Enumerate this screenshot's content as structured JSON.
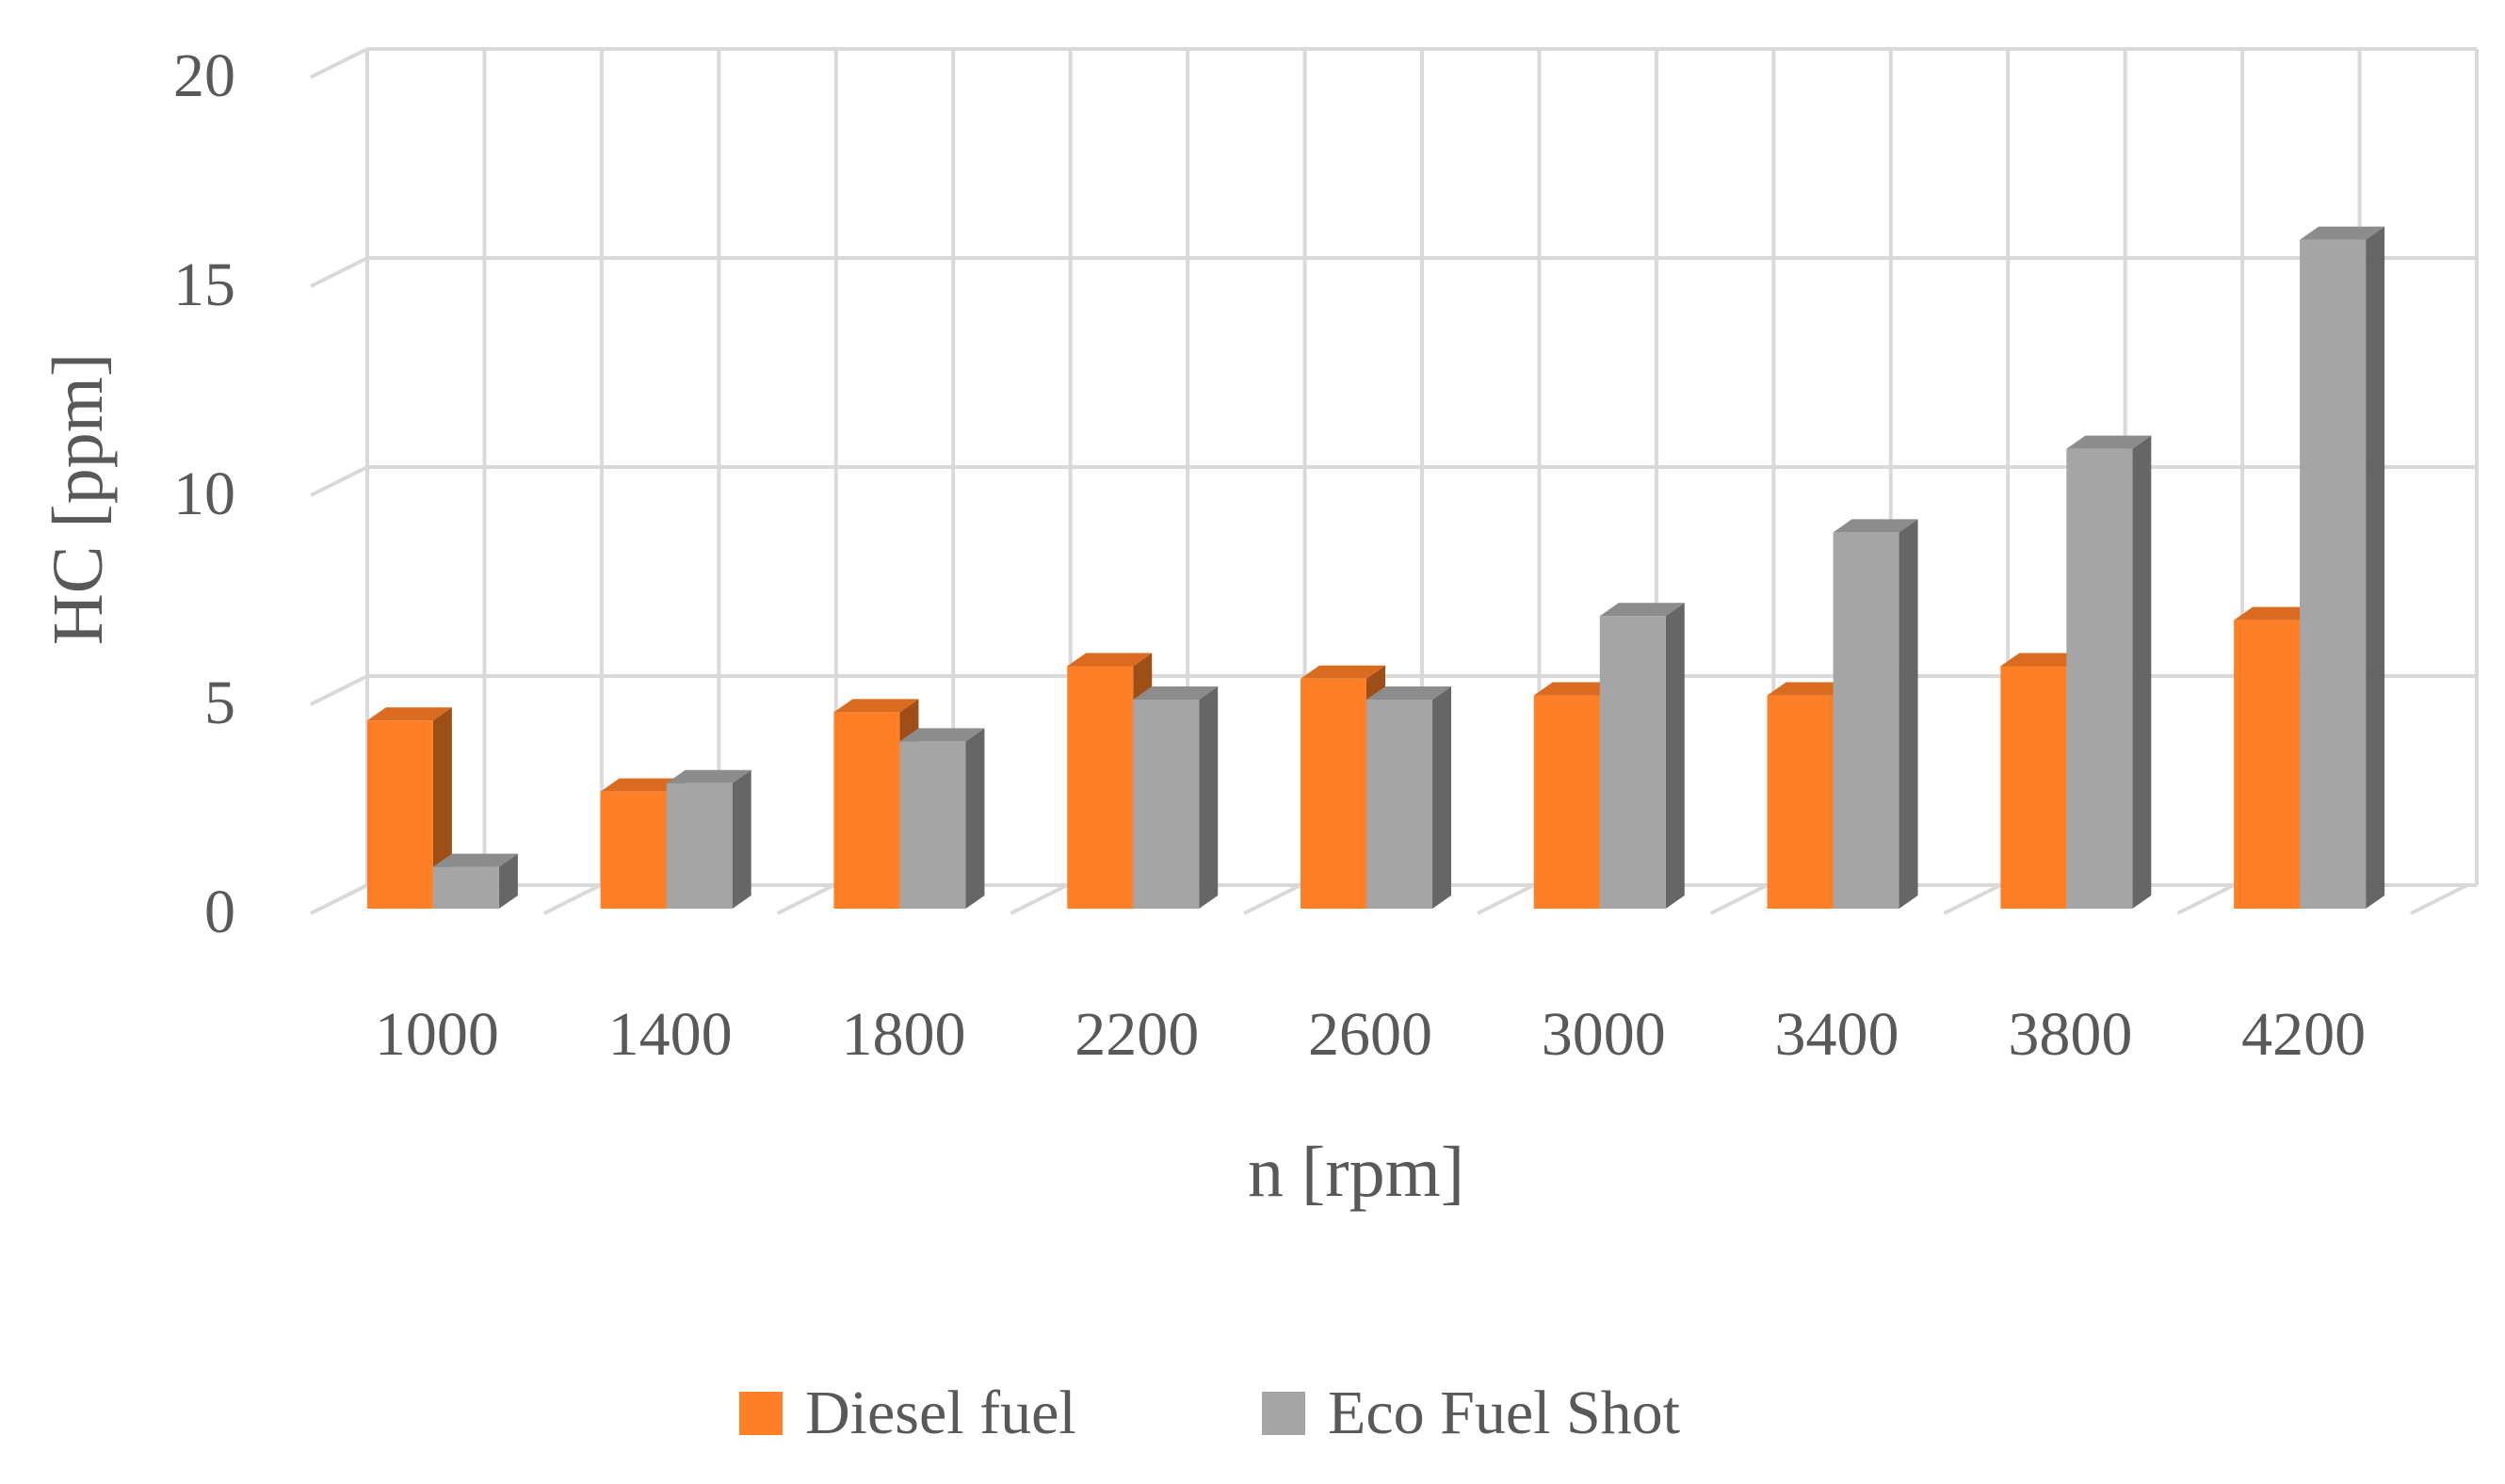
{
  "chart_data": {
    "type": "bar",
    "style": "3d-clustered-column",
    "categories": [
      "1000",
      "1400",
      "1800",
      "2200",
      "2600",
      "3000",
      "3400",
      "3800",
      "4200"
    ],
    "series": [
      {
        "name": "Diesel fuel",
        "values": [
          4.5,
          2.8,
          4.7,
          5.8,
          5.5,
          5.1,
          5.1,
          5.8,
          6.9
        ],
        "color": "#FF7F27"
      },
      {
        "name": "Eco Fuel Shot",
        "values": [
          1.0,
          3.0,
          4.0,
          5.0,
          5.0,
          7.0,
          9.0,
          11.0,
          16.0
        ],
        "color": "#A5A5A5"
      }
    ],
    "title": "",
    "xlabel": "n [rpm]",
    "ylabel": "HC [ppm]",
    "ylim": [
      0,
      20
    ],
    "yticks": [
      "0",
      "5",
      "10",
      "15",
      "20"
    ],
    "grid": true,
    "legend": "bottom"
  }
}
